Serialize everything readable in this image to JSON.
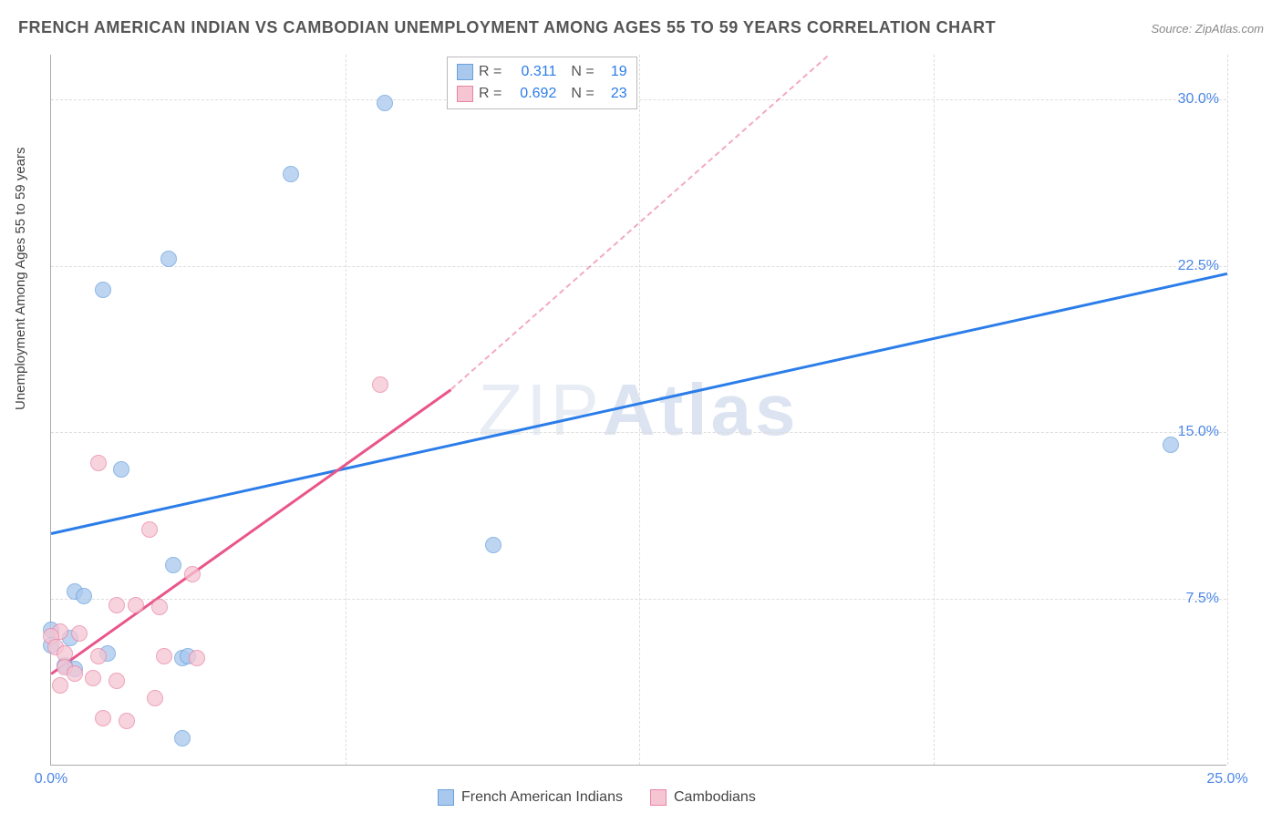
{
  "title": "FRENCH AMERICAN INDIAN VS CAMBODIAN UNEMPLOYMENT AMONG AGES 55 TO 59 YEARS CORRELATION CHART",
  "source": "Source: ZipAtlas.com",
  "ylabel": "Unemployment Among Ages 55 to 59 years",
  "watermark_light": "ZIP",
  "watermark_bold": "Atlas",
  "chart": {
    "type": "scatter",
    "xlim": [
      0,
      25
    ],
    "ylim": [
      0,
      32
    ],
    "xtick_labels": [
      "0.0%",
      "25.0%"
    ],
    "xtick_positions": [
      0,
      25
    ],
    "ytick_labels": [
      "7.5%",
      "15.0%",
      "22.5%",
      "30.0%"
    ],
    "ytick_positions": [
      7.5,
      15,
      22.5,
      30
    ],
    "gridlines_h": [
      7.5,
      15,
      22.5,
      30
    ],
    "gridlines_v": [
      6.25,
      12.5,
      18.75,
      25
    ],
    "background_color": "#ffffff",
    "grid_color": "#dddddd",
    "axis_color": "#aaaaaa",
    "tick_color": "#4a86e8",
    "series": [
      {
        "name": "French American Indians",
        "marker_color": "#a8c8ed",
        "marker_border": "#6aa0dd",
        "marker_size": 18,
        "marker_opacity": 0.75,
        "trend_color": "#2b7de9",
        "trend_width": 2.5,
        "trend_dash_extend": false,
        "trend_start": [
          0,
          10.5
        ],
        "trend_end": [
          25,
          22.2
        ],
        "correlation_R": "0.311",
        "correlation_N": "19",
        "points": [
          {
            "x": 7.1,
            "y": 30.2
          },
          {
            "x": 5.1,
            "y": 27.0
          },
          {
            "x": 2.5,
            "y": 23.2
          },
          {
            "x": 1.1,
            "y": 21.8
          },
          {
            "x": 23.8,
            "y": 14.8
          },
          {
            "x": 1.5,
            "y": 13.7
          },
          {
            "x": 9.4,
            "y": 10.3
          },
          {
            "x": 2.6,
            "y": 9.4
          },
          {
            "x": 0.5,
            "y": 8.2
          },
          {
            "x": 0.7,
            "y": 8.0
          },
          {
            "x": 0.0,
            "y": 6.5
          },
          {
            "x": 0.4,
            "y": 6.1
          },
          {
            "x": 0.0,
            "y": 5.8
          },
          {
            "x": 1.2,
            "y": 5.4
          },
          {
            "x": 2.8,
            "y": 5.2
          },
          {
            "x": 2.9,
            "y": 5.3
          },
          {
            "x": 0.3,
            "y": 4.9
          },
          {
            "x": 0.5,
            "y": 4.7
          },
          {
            "x": 2.8,
            "y": 1.6
          }
        ]
      },
      {
        "name": "Cambodians",
        "marker_color": "#f5c5d3",
        "marker_border": "#e985a5",
        "marker_size": 18,
        "marker_opacity": 0.75,
        "trend_color": "#e9558a",
        "trend_width": 2.5,
        "trend_dash_extend": true,
        "trend_start": [
          0,
          4.2
        ],
        "trend_end": [
          8.5,
          17.0
        ],
        "trend_dash_end": [
          16.5,
          32
        ],
        "correlation_R": "0.692",
        "correlation_N": "23",
        "points": [
          {
            "x": 7.0,
            "y": 17.5
          },
          {
            "x": 1.0,
            "y": 14.0
          },
          {
            "x": 2.1,
            "y": 11.0
          },
          {
            "x": 3.0,
            "y": 9.0
          },
          {
            "x": 1.4,
            "y": 7.6
          },
          {
            "x": 1.8,
            "y": 7.6
          },
          {
            "x": 2.3,
            "y": 7.5
          },
          {
            "x": 0.2,
            "y": 6.4
          },
          {
            "x": 0.0,
            "y": 6.2
          },
          {
            "x": 0.6,
            "y": 6.3
          },
          {
            "x": 0.1,
            "y": 5.7
          },
          {
            "x": 0.3,
            "y": 5.4
          },
          {
            "x": 1.0,
            "y": 5.3
          },
          {
            "x": 2.4,
            "y": 5.3
          },
          {
            "x": 3.1,
            "y": 5.2
          },
          {
            "x": 0.3,
            "y": 4.8
          },
          {
            "x": 0.5,
            "y": 4.5
          },
          {
            "x": 0.9,
            "y": 4.3
          },
          {
            "x": 1.4,
            "y": 4.2
          },
          {
            "x": 0.2,
            "y": 4.0
          },
          {
            "x": 2.2,
            "y": 3.4
          },
          {
            "x": 1.1,
            "y": 2.5
          },
          {
            "x": 1.6,
            "y": 2.4
          }
        ]
      }
    ]
  },
  "legend_correlation": {
    "label_R": "R  =",
    "label_N": "N  ="
  },
  "legend_series_labels": [
    "French American Indians",
    "Cambodians"
  ]
}
